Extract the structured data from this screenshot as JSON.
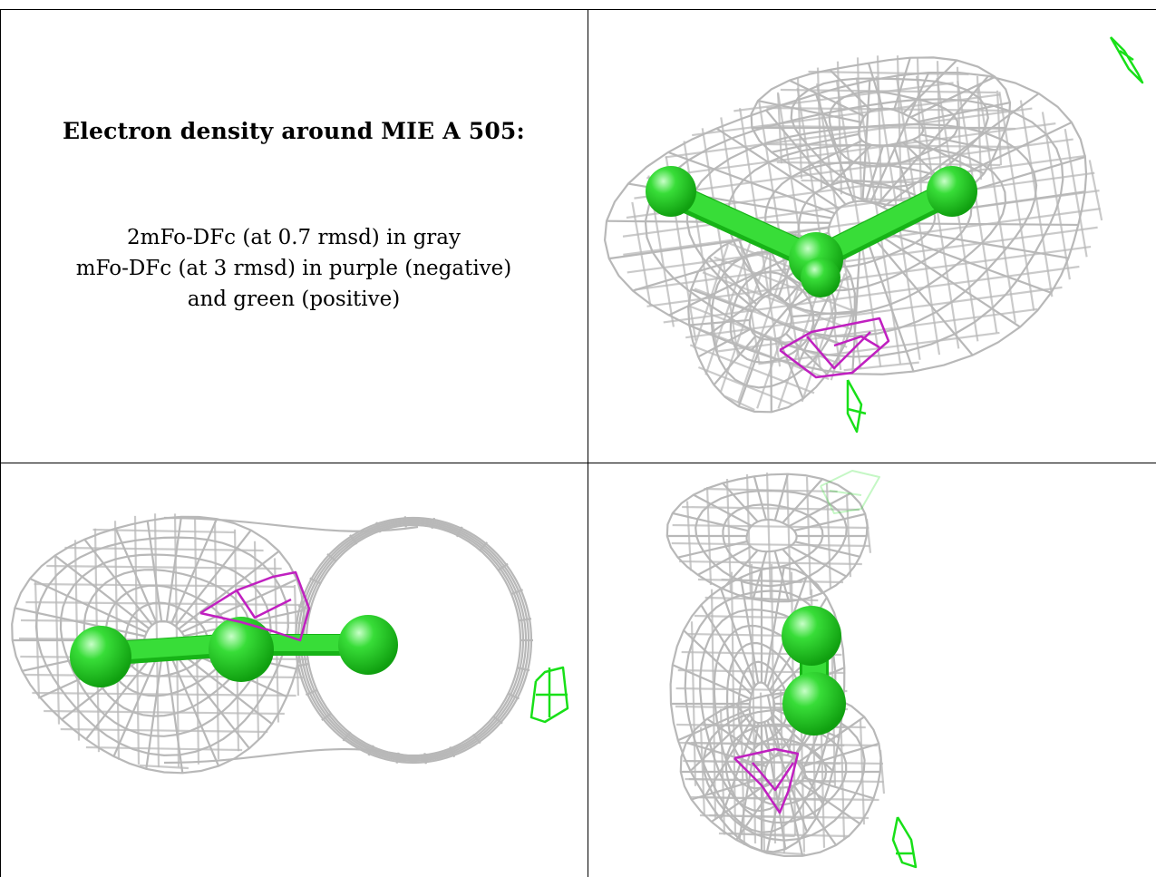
{
  "caption": {
    "title": "Electron density around MIE A 505:",
    "line1": "2mFo-DFc (at 0.7 rmsd) in gray",
    "line2": "mFo-DFc (at 3 rmsd) in purple (negative)",
    "line3": "and green (positive)"
  },
  "colors": {
    "density_2fofc": "#b8b8b8",
    "density_negative": "#c020c0",
    "density_positive": "#18e018",
    "atom": "#38dd38",
    "border": "#000000"
  },
  "panels": [
    {
      "name": "view-top-right"
    },
    {
      "name": "view-bottom-left"
    },
    {
      "name": "view-bottom-right"
    }
  ]
}
